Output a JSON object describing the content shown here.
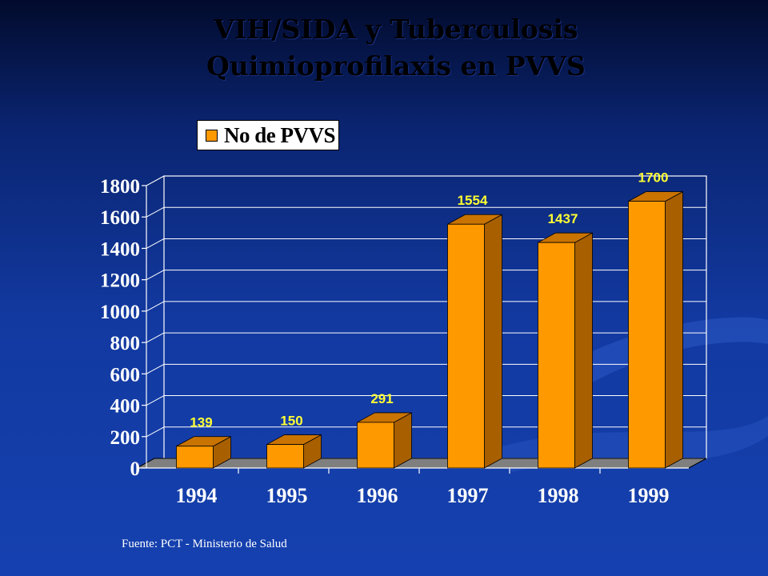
{
  "slide": {
    "title_line1": "VIH/SIDA y Tuberculosis",
    "title_line2": "Quimioprofilaxis  en PVVS",
    "source": "Fuente: PCT - Ministerio de Salud"
  },
  "colors": {
    "bar_face": "#ff9900",
    "bar_side": "#a85f00",
    "bar_top": "#c97300",
    "data_label": "#ffff33",
    "floor": "#7f7f7f"
  },
  "chart_data": {
    "type": "bar",
    "title": "",
    "xlabel": "",
    "ylabel": "",
    "categories": [
      "1994",
      "1995",
      "1996",
      "1997",
      "1998",
      "1999"
    ],
    "series": [
      {
        "name": "No de PVVS",
        "values": [
          139,
          150,
          291,
          1554,
          1437,
          1700
        ]
      }
    ],
    "ylim": [
      0,
      1800
    ],
    "yticks": [
      0,
      200,
      400,
      600,
      800,
      1000,
      1200,
      1400,
      1600,
      1800
    ],
    "data_labels": [
      "139",
      "150",
      "291",
      "1554",
      "1437",
      "1700"
    ],
    "legend_position": "top-left",
    "grid": true,
    "style": "3d"
  }
}
